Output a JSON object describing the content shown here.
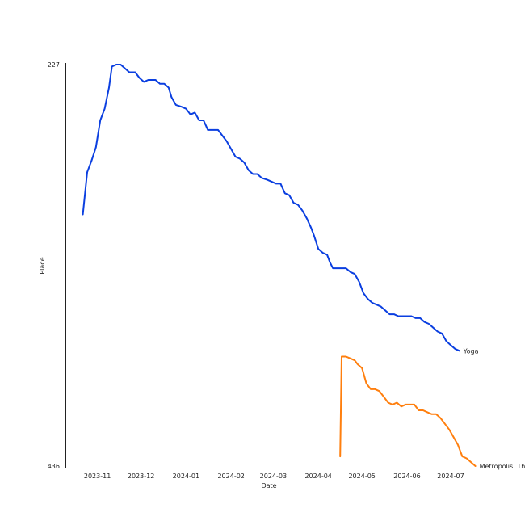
{
  "chart_data": {
    "type": "line",
    "title": "",
    "xlabel": "Date",
    "ylabel": "Place",
    "y_inverted": true,
    "ylim": [
      227,
      436
    ],
    "y_ticks": [
      "227",
      "436"
    ],
    "xlim": [
      "2023-10-10",
      "2024-07-31"
    ],
    "x_ticks": [
      {
        "label": "2023-11",
        "date": "2023-11-01"
      },
      {
        "label": "2023-12",
        "date": "2023-12-01"
      },
      {
        "label": "2024-01",
        "date": "2024-01-01"
      },
      {
        "label": "2024-02",
        "date": "2024-02-01"
      },
      {
        "label": "2024-03",
        "date": "2024-03-01"
      },
      {
        "label": "2024-04",
        "date": "2024-04-01"
      },
      {
        "label": "2024-05",
        "date": "2024-05-01"
      },
      {
        "label": "2024-06",
        "date": "2024-06-01"
      },
      {
        "label": "2024-07",
        "date": "2024-07-01"
      }
    ],
    "grid": false,
    "legend": "none",
    "series": [
      {
        "name": "Yoga",
        "color": "#0b3fe0",
        "points": [
          [
            "2023-10-22",
            305
          ],
          [
            "2023-10-25",
            283
          ],
          [
            "2023-10-28",
            277
          ],
          [
            "2023-10-31",
            270
          ],
          [
            "2023-11-03",
            256
          ],
          [
            "2023-11-06",
            250
          ],
          [
            "2023-11-09",
            239
          ],
          [
            "2023-11-11",
            228
          ],
          [
            "2023-11-14",
            227
          ],
          [
            "2023-11-17",
            227
          ],
          [
            "2023-11-20",
            229
          ],
          [
            "2023-11-23",
            231
          ],
          [
            "2023-11-27",
            231
          ],
          [
            "2023-11-30",
            234
          ],
          [
            "2023-12-03",
            236
          ],
          [
            "2023-12-06",
            235
          ],
          [
            "2023-12-11",
            235
          ],
          [
            "2023-12-14",
            237
          ],
          [
            "2023-12-17",
            237
          ],
          [
            "2023-12-20",
            239
          ],
          [
            "2023-12-22",
            244
          ],
          [
            "2023-12-25",
            248
          ],
          [
            "2023-12-29",
            249
          ],
          [
            "2024-01-01",
            250
          ],
          [
            "2024-01-04",
            253
          ],
          [
            "2024-01-07",
            252
          ],
          [
            "2024-01-10",
            256
          ],
          [
            "2024-01-13",
            256
          ],
          [
            "2024-01-16",
            261
          ],
          [
            "2024-01-20",
            261
          ],
          [
            "2024-01-23",
            261
          ],
          [
            "2024-01-26",
            264
          ],
          [
            "2024-01-29",
            267
          ],
          [
            "2024-02-01",
            271
          ],
          [
            "2024-02-04",
            275
          ],
          [
            "2024-02-07",
            276
          ],
          [
            "2024-02-10",
            278
          ],
          [
            "2024-02-13",
            282
          ],
          [
            "2024-02-16",
            284
          ],
          [
            "2024-02-19",
            284
          ],
          [
            "2024-02-22",
            286
          ],
          [
            "2024-02-26",
            287
          ],
          [
            "2024-02-29",
            288
          ],
          [
            "2024-03-03",
            289
          ],
          [
            "2024-03-06",
            289
          ],
          [
            "2024-03-09",
            294
          ],
          [
            "2024-03-12",
            295
          ],
          [
            "2024-03-15",
            299
          ],
          [
            "2024-03-18",
            300
          ],
          [
            "2024-03-21",
            303
          ],
          [
            "2024-03-24",
            307
          ],
          [
            "2024-03-27",
            312
          ],
          [
            "2024-03-29",
            316
          ],
          [
            "2024-04-01",
            323
          ],
          [
            "2024-04-04",
            325
          ],
          [
            "2024-04-07",
            326
          ],
          [
            "2024-04-09",
            330
          ],
          [
            "2024-04-11",
            333
          ],
          [
            "2024-04-14",
            333
          ],
          [
            "2024-04-17",
            333
          ],
          [
            "2024-04-20",
            333
          ],
          [
            "2024-04-23",
            335
          ],
          [
            "2024-04-26",
            336
          ],
          [
            "2024-04-29",
            340
          ],
          [
            "2024-05-02",
            346
          ],
          [
            "2024-05-05",
            349
          ],
          [
            "2024-05-08",
            351
          ],
          [
            "2024-05-11",
            352
          ],
          [
            "2024-05-14",
            353
          ],
          [
            "2024-05-17",
            355
          ],
          [
            "2024-05-20",
            357
          ],
          [
            "2024-05-23",
            357
          ],
          [
            "2024-05-26",
            358
          ],
          [
            "2024-05-29",
            358
          ],
          [
            "2024-06-01",
            358
          ],
          [
            "2024-06-04",
            358
          ],
          [
            "2024-06-07",
            359
          ],
          [
            "2024-06-10",
            359
          ],
          [
            "2024-06-13",
            361
          ],
          [
            "2024-06-16",
            362
          ],
          [
            "2024-06-19",
            364
          ],
          [
            "2024-06-22",
            366
          ],
          [
            "2024-06-25",
            367
          ],
          [
            "2024-06-28",
            371
          ],
          [
            "2024-07-01",
            373
          ],
          [
            "2024-07-04",
            375
          ],
          [
            "2024-07-07",
            376
          ]
        ]
      },
      {
        "name": "Metropolis: The Cha",
        "color": "#ff7f0e",
        "points": [
          [
            "2024-04-16",
            431
          ],
          [
            "2024-04-17",
            379
          ],
          [
            "2024-04-20",
            379
          ],
          [
            "2024-04-23",
            380
          ],
          [
            "2024-04-26",
            381
          ],
          [
            "2024-04-28",
            383
          ],
          [
            "2024-05-01",
            385
          ],
          [
            "2024-05-04",
            393
          ],
          [
            "2024-05-07",
            396
          ],
          [
            "2024-05-10",
            396
          ],
          [
            "2024-05-13",
            397
          ],
          [
            "2024-05-16",
            400
          ],
          [
            "2024-05-19",
            403
          ],
          [
            "2024-05-22",
            404
          ],
          [
            "2024-05-25",
            403
          ],
          [
            "2024-05-28",
            405
          ],
          [
            "2024-05-31",
            404
          ],
          [
            "2024-06-03",
            404
          ],
          [
            "2024-06-06",
            404
          ],
          [
            "2024-06-09",
            407
          ],
          [
            "2024-06-12",
            407
          ],
          [
            "2024-06-15",
            408
          ],
          [
            "2024-06-18",
            409
          ],
          [
            "2024-06-21",
            409
          ],
          [
            "2024-06-24",
            411
          ],
          [
            "2024-06-27",
            414
          ],
          [
            "2024-06-30",
            417
          ],
          [
            "2024-07-03",
            421
          ],
          [
            "2024-07-06",
            425
          ],
          [
            "2024-07-09",
            431
          ],
          [
            "2024-07-12",
            432
          ],
          [
            "2024-07-15",
            434
          ],
          [
            "2024-07-18",
            436
          ]
        ]
      }
    ]
  }
}
